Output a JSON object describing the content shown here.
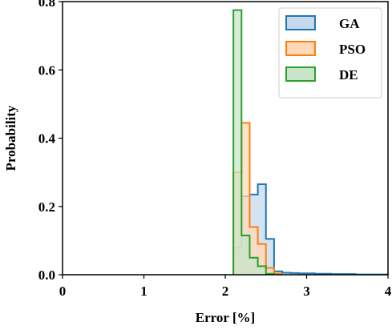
{
  "chart_data": {
    "type": "histogram",
    "xlabel": "Error [%]",
    "ylabel": "Probability",
    "xlim": [
      0,
      4
    ],
    "ylim": [
      0,
      0.8
    ],
    "xticks": [
      "0",
      "1",
      "2",
      "3",
      "4"
    ],
    "yticks": [
      "0.0",
      "0.2",
      "0.4",
      "0.6",
      "0.8"
    ],
    "grid": false,
    "legend_position": "top-right",
    "bin_width": 0.1,
    "series": [
      {
        "name": "GA",
        "color": "#1f77b4",
        "fill": "#c6d9ec",
        "bins_start": [
          2.1,
          2.2,
          2.3,
          2.4,
          2.5,
          2.6,
          2.7,
          2.8,
          2.9,
          3.0,
          3.1,
          3.2,
          3.3,
          3.4,
          3.5,
          3.6,
          3.7,
          3.8,
          3.9
        ],
        "values": [
          0.08,
          0.23,
          0.235,
          0.265,
          0.105,
          0.01,
          0.006,
          0.005,
          0.004,
          0.004,
          0.003,
          0.003,
          0.002,
          0.002,
          0.002,
          0.001,
          0.001,
          0.001,
          0.001
        ]
      },
      {
        "name": "PSO",
        "color": "#ff7f0e",
        "fill": "#ffd9b8",
        "bins_start": [
          2.1,
          2.2,
          2.3,
          2.4,
          2.5,
          2.6
        ],
        "values": [
          0.3,
          0.445,
          0.14,
          0.09,
          0.02,
          0.003
        ]
      },
      {
        "name": "DE",
        "color": "#2ca02c",
        "fill": "#c8e5c8",
        "bins_start": [
          2.1,
          2.2,
          2.3,
          2.4,
          2.5
        ],
        "values": [
          0.775,
          0.115,
          0.05,
          0.025,
          0.003
        ]
      }
    ]
  }
}
